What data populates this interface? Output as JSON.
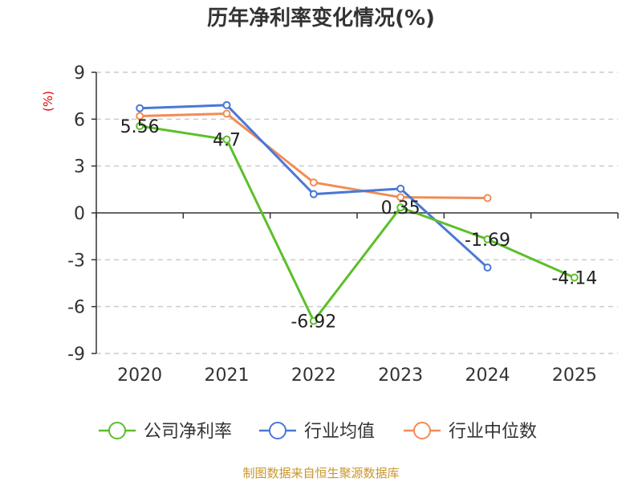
{
  "chart_data": {
    "type": "line",
    "title": "历年净利率变化情况(%)",
    "ylabel": "(%)",
    "xlabel": "",
    "categories": [
      "2020",
      "2021",
      "2022",
      "2023",
      "2024",
      "2025"
    ],
    "yticks": [
      "9",
      "6",
      "3",
      "0",
      "-3",
      "-6",
      "-9"
    ],
    "ylim": [
      -9,
      9
    ],
    "grid": true,
    "legend_position": "bottom",
    "series": [
      {
        "name": "公司净利率",
        "color": "#5cbf2a",
        "values": [
          5.56,
          4.7,
          -6.92,
          0.35,
          -1.69,
          -4.14
        ],
        "labels": [
          "5.56",
          "4.7",
          "-6.92",
          "0.35",
          "-1.69",
          "-4.14"
        ]
      },
      {
        "name": "行业均值",
        "color": "#4a78d6",
        "values": [
          6.7,
          6.9,
          1.2,
          1.55,
          -3.5,
          null
        ]
      },
      {
        "name": "行业中位数",
        "color": "#f28c55",
        "values": [
          6.2,
          6.35,
          1.95,
          1.0,
          0.95,
          null
        ]
      }
    ]
  },
  "source_note": "制图数据来自恒生聚源数据库"
}
